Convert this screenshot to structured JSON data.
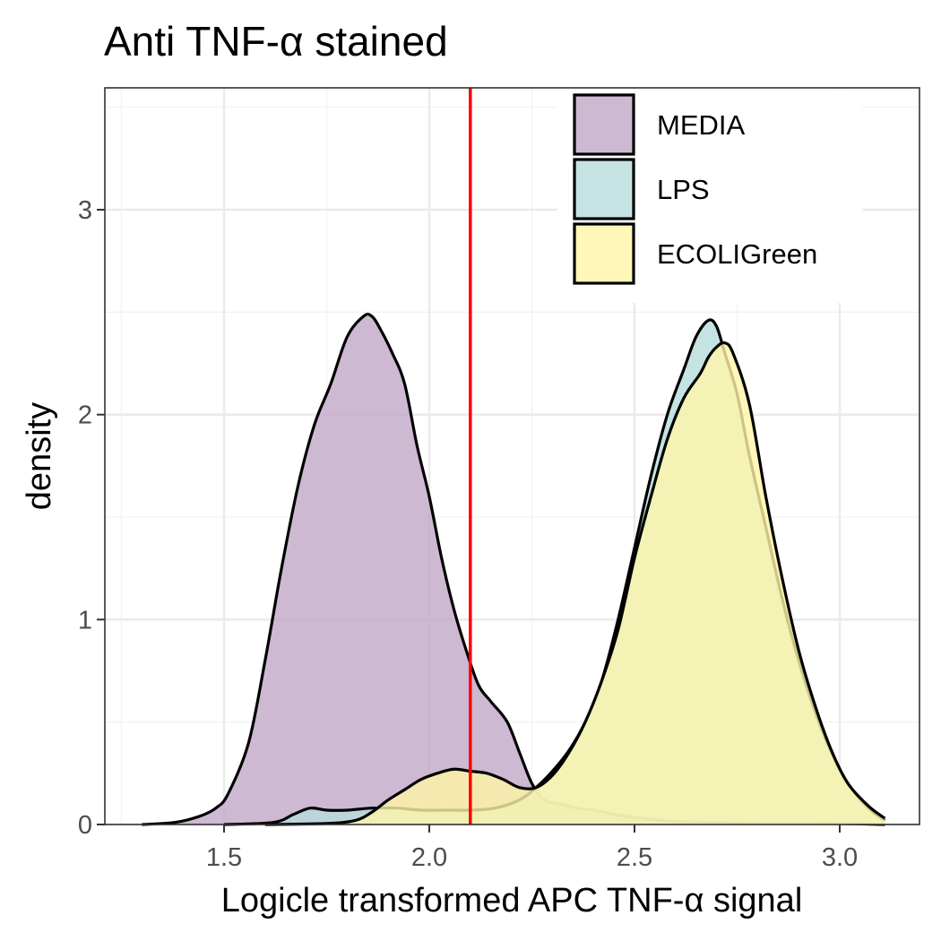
{
  "chart_data": {
    "type": "area",
    "title": "Anti TNF-α stained",
    "xlabel": "Logicle transformed APC TNF-α signal",
    "ylabel": "density",
    "xlim": [
      1.26,
      3.2
    ],
    "ylim": [
      0,
      3.6
    ],
    "x_ticks": [
      1.5,
      2.0,
      2.5,
      3.0
    ],
    "x_tick_labels": [
      "1.5",
      "2.0",
      "2.5",
      "3.0"
    ],
    "y_ticks": [
      0,
      1,
      2,
      3
    ],
    "y_tick_labels": [
      "0",
      "1",
      "2",
      "3"
    ],
    "grid": true,
    "legend_position": "top-right",
    "threshold_line": {
      "x": 2.1,
      "color": "#ff0000"
    },
    "series": [
      {
        "name": "MEDIA",
        "color": "#c2a8c8",
        "x": [
          1.3,
          1.38,
          1.44,
          1.48,
          1.51,
          1.56,
          1.6,
          1.64,
          1.68,
          1.72,
          1.76,
          1.8,
          1.84,
          1.86,
          1.88,
          1.91,
          1.94,
          1.97,
          2.0,
          2.03,
          2.06,
          2.09,
          2.12,
          2.15,
          2.19,
          2.22,
          2.25,
          2.28,
          2.32,
          2.36,
          2.4,
          2.45,
          2.52,
          2.6,
          2.7,
          2.8,
          2.9,
          3.0,
          3.11
        ],
        "values": [
          0.0,
          0.01,
          0.04,
          0.08,
          0.15,
          0.4,
          0.8,
          1.25,
          1.65,
          1.95,
          2.15,
          2.38,
          2.48,
          2.48,
          2.42,
          2.3,
          2.15,
          1.85,
          1.6,
          1.3,
          1.05,
          0.85,
          0.68,
          0.6,
          0.5,
          0.35,
          0.2,
          0.12,
          0.1,
          0.08,
          0.07,
          0.05,
          0.03,
          0.015,
          0.01,
          0.005,
          0.005,
          0.005,
          0.0
        ]
      },
      {
        "name": "LPS",
        "color": "#b7dcdc",
        "x": [
          1.5,
          1.62,
          1.67,
          1.71,
          1.75,
          1.8,
          1.86,
          1.92,
          1.98,
          2.04,
          2.1,
          2.16,
          2.22,
          2.26,
          2.3,
          2.34,
          2.38,
          2.42,
          2.46,
          2.5,
          2.54,
          2.58,
          2.62,
          2.65,
          2.68,
          2.7,
          2.72,
          2.75,
          2.78,
          2.82,
          2.86,
          2.9,
          2.94,
          2.98,
          3.02,
          3.07,
          3.11
        ],
        "values": [
          0.0,
          0.01,
          0.05,
          0.08,
          0.07,
          0.07,
          0.08,
          0.08,
          0.07,
          0.07,
          0.07,
          0.08,
          0.12,
          0.18,
          0.26,
          0.36,
          0.5,
          0.7,
          1.0,
          1.35,
          1.7,
          2.0,
          2.22,
          2.38,
          2.46,
          2.43,
          2.3,
          2.1,
          1.8,
          1.45,
          1.1,
          0.8,
          0.55,
          0.35,
          0.2,
          0.08,
          0.02
        ]
      },
      {
        "name": "ECOLIGreen",
        "color": "#fff5a8",
        "x": [
          1.6,
          1.75,
          1.82,
          1.86,
          1.9,
          1.94,
          1.98,
          2.02,
          2.06,
          2.1,
          2.14,
          2.18,
          2.22,
          2.26,
          2.3,
          2.34,
          2.38,
          2.42,
          2.46,
          2.5,
          2.54,
          2.58,
          2.62,
          2.66,
          2.68,
          2.7,
          2.72,
          2.74,
          2.78,
          2.82,
          2.86,
          2.9,
          2.94,
          2.98,
          3.02,
          3.07,
          3.11
        ],
        "values": [
          0.0,
          0.005,
          0.02,
          0.06,
          0.12,
          0.17,
          0.22,
          0.25,
          0.27,
          0.26,
          0.25,
          0.22,
          0.18,
          0.18,
          0.24,
          0.35,
          0.5,
          0.7,
          0.95,
          1.3,
          1.6,
          1.88,
          2.08,
          2.2,
          2.28,
          2.33,
          2.35,
          2.3,
          2.05,
          1.6,
          1.2,
          0.85,
          0.58,
          0.36,
          0.2,
          0.09,
          0.03
        ]
      }
    ]
  }
}
